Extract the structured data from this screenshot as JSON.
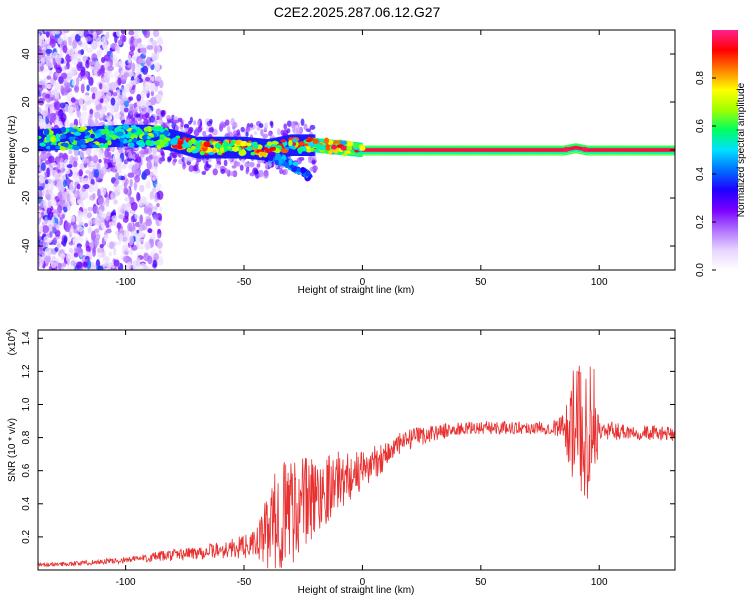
{
  "title": "C2E2.2025.287.06.12.G27",
  "colors": {
    "signal_line": "#e83030",
    "axis": "#000000",
    "background": "#ffffff"
  },
  "colorbar": {
    "label": "Normalized spectral amplitude",
    "ticks": [
      "0.0",
      "0.2",
      "0.4",
      "0.6",
      "0.8"
    ],
    "tick_values": [
      0.0,
      0.2,
      0.4,
      0.6,
      0.8
    ],
    "range": [
      0,
      1
    ],
    "colormap": [
      "#ffffff",
      "#e6d4ff",
      "#b070ff",
      "#7a00ff",
      "#1e00ff",
      "#0070ff",
      "#00e0ff",
      "#00ff60",
      "#a0ff00",
      "#ffff00",
      "#ff8000",
      "#ff0000",
      "#ff2090"
    ]
  },
  "chart_data": [
    {
      "type": "heatmap",
      "xlabel": "Height of straight line (km)",
      "ylabel": "Frequency (Hz)",
      "xlim": [
        -137,
        132
      ],
      "ylim": [
        -50,
        50
      ],
      "x_ticks": [
        -100,
        -50,
        0,
        50,
        100
      ],
      "x_tick_labels": [
        "-100",
        "-50",
        "0",
        "50",
        "100"
      ],
      "y_ticks": [
        -40,
        -20,
        0,
        20,
        40
      ],
      "y_tick_labels": [
        "-40",
        "-20",
        "0",
        "20",
        "40"
      ],
      "ridge": {
        "x": [
          -137,
          -120,
          -100,
          -90,
          -80,
          -70,
          -60,
          -50,
          -40,
          -30,
          -20,
          -10,
          0,
          20,
          50,
          85,
          90,
          95,
          100,
          132
        ],
        "frequency": [
          4,
          5,
          6,
          6,
          4,
          1,
          1,
          1,
          0,
          2,
          2,
          1,
          0,
          0,
          0,
          0,
          1,
          0,
          0,
          0
        ]
      },
      "branch": {
        "x": [
          -40,
          -35,
          -30,
          -25,
          -22
        ],
        "frequency": [
          -3,
          -4,
          -6,
          -9,
          -12
        ]
      },
      "noise_region": {
        "x": [
          -137,
          -85
        ],
        "frequency": [
          -50,
          50
        ]
      }
    },
    {
      "type": "line",
      "xlabel": "Height of straight line (km)",
      "ylabel": "SNR (10 * v/v)",
      "y_multiplier_label": "(x10",
      "y_multiplier_exponent": "4",
      "xlim": [
        -137,
        132
      ],
      "ylim": [
        0,
        1.45
      ],
      "x_ticks": [
        -100,
        -50,
        0,
        50,
        100
      ],
      "x_tick_labels": [
        "-100",
        "-50",
        "0",
        "50",
        "100"
      ],
      "y_ticks": [
        0.2,
        0.4,
        0.6,
        0.8,
        1.0,
        1.2,
        1.4
      ],
      "y_tick_labels": [
        "0.2",
        "0.4",
        "0.6",
        "0.8",
        "1.0",
        "1.2",
        "1.4"
      ],
      "envelope": {
        "x": [
          -137,
          -120,
          -100,
          -80,
          -60,
          -50,
          -45,
          -40,
          -35,
          -30,
          -25,
          -20,
          -15,
          -10,
          -5,
          0,
          5,
          10,
          15,
          20,
          30,
          40,
          50,
          60,
          70,
          80,
          85,
          88,
          90,
          92,
          95,
          97,
          100,
          110,
          120,
          132
        ],
        "y": [
          0.03,
          0.04,
          0.06,
          0.09,
          0.12,
          0.14,
          0.16,
          0.22,
          0.32,
          0.38,
          0.4,
          0.44,
          0.5,
          0.54,
          0.57,
          0.6,
          0.65,
          0.7,
          0.75,
          0.79,
          0.83,
          0.85,
          0.86,
          0.86,
          0.86,
          0.86,
          0.87,
          0.87,
          0.86,
          0.86,
          0.85,
          0.84,
          0.84,
          0.84,
          0.83,
          0.82
        ]
      },
      "noise_amplitude": {
        "x": [
          -137,
          -100,
          -60,
          -45,
          -38,
          -30,
          -25,
          -20,
          -10,
          0,
          20,
          40,
          80,
          85,
          88,
          90,
          92,
          95,
          97,
          100,
          132
        ],
        "amp": [
          0.01,
          0.02,
          0.05,
          0.08,
          0.3,
          0.35,
          0.3,
          0.25,
          0.18,
          0.12,
          0.06,
          0.04,
          0.04,
          0.08,
          0.3,
          0.4,
          0.4,
          0.45,
          0.5,
          0.06,
          0.04
        ]
      }
    }
  ]
}
